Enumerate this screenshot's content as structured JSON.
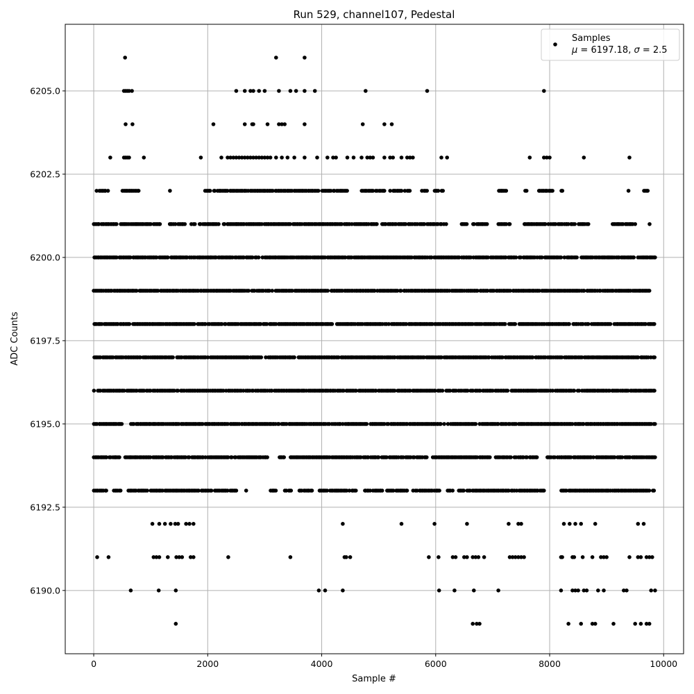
{
  "chart_data": {
    "type": "scatter",
    "title": "Run 529, channel107, Pedestal",
    "xlabel": "Sample #",
    "ylabel": "ADC Counts",
    "xlim": [
      -500,
      10350
    ],
    "ylim": [
      6188.1,
      6207.0
    ],
    "xticks": [
      0,
      2000,
      4000,
      6000,
      8000,
      10000
    ],
    "xtick_labels": [
      "0",
      "2000",
      "4000",
      "6000",
      "8000",
      "10000"
    ],
    "yticks": [
      6190.0,
      6192.5,
      6195.0,
      6197.5,
      6200.0,
      6202.5,
      6205.0
    ],
    "ytick_labels": [
      "6190.0",
      "6192.5",
      "6195.0",
      "6197.5",
      "6200.0",
      "6202.5",
      "6205.0"
    ],
    "grid": true,
    "legend": {
      "placement": "top-right",
      "series_label": "Samples",
      "stats_mu_symbol": "μ",
      "stats_mu_value": " = 6197.18, ",
      "stats_sigma_symbol": "σ",
      "stats_sigma_value": " = 2.5"
    },
    "colors": {
      "points": "#000000",
      "grid": "#b0b0b0",
      "axes": "#000000",
      "legend_border": "#cccccc"
    },
    "series": [
      {
        "name": "Samples",
        "sample_count": 9850,
        "x_range": [
          0,
          9850
        ],
        "distribution": [
          {
            "y": 6206,
            "x": [
              550,
              3200,
              3700
            ]
          },
          {
            "y": 6205,
            "x": [
              530,
              560,
              590,
              620,
              670,
              2500,
              2650,
              2750,
              2800,
              2900,
              3000,
              3250,
              3450,
              3550,
              3700,
              3880,
              4770,
              5850,
              7900
            ]
          },
          {
            "y": 6204,
            "x": [
              560,
              680,
              2100,
              2650,
              2780,
              2800,
              3050,
              3250,
              3300,
              3350,
              3700,
              4720,
              5100,
              5230
            ]
          },
          {
            "y": 6203,
            "x": [
              290,
              530,
              560,
              590,
              620,
              880,
              1880,
              2240,
              2350,
              2400,
              2450,
              2500,
              2550,
              2600,
              2650,
              2700,
              2750,
              2800,
              2850,
              2900,
              2950,
              3000,
              3050,
              3100,
              3200,
              3300,
              3400,
              3520,
              3700,
              3920,
              4100,
              4200,
              4250,
              4450,
              4560,
              4700,
              4800,
              4850,
              4900,
              5100,
              5200,
              5250,
              5400,
              5500,
              5550,
              5600,
              6100,
              6200,
              7650,
              7900,
              7950,
              8000,
              8600,
              9400
            ]
          },
          {
            "y": 6192,
            "x": [
              1030,
              1150,
              1250,
              1350,
              1430,
              1480,
              1620,
              1680,
              1750,
              4370,
              5400,
              5980,
              6550,
              7280,
              7450,
              7500,
              8250,
              8350,
              8450,
              8550,
              8800,
              9550,
              9650
            ]
          },
          {
            "y": 6191,
            "x": [
              60,
              260,
              1050,
              1100,
              1150,
              1300,
              1450,
              1500,
              1550,
              1700,
              1750,
              2360,
              3450,
              4400,
              4430,
              4500,
              5880,
              6050,
              6300,
              6350,
              6500,
              6550,
              6650,
              6700,
              6750,
              6850,
              7300,
              7350,
              7400,
              7450,
              7500,
              7550,
              8200,
              8220,
              8400,
              8430,
              8580,
              8750,
              8900,
              8950,
              9000,
              9400,
              9550,
              9600,
              9700,
              9750,
              9800
            ]
          },
          {
            "y": 6190,
            "x": [
              650,
              1140,
              1440,
              3950,
              4060,
              4370,
              6060,
              6330,
              6670,
              7100,
              8200,
              8400,
              8450,
              8500,
              8600,
              8650,
              8850,
              8950,
              9300,
              9350,
              9780,
              9850
            ]
          },
          {
            "y": 6189,
            "x": [
              1440,
              6650,
              6720,
              6770,
              8330,
              8550,
              8750,
              8800,
              9120,
              9500,
              9600,
              9700,
              9750
            ]
          }
        ],
        "dense_levels": [
          {
            "y": 6202,
            "segments": [
              [
                50,
                260
              ],
              [
                500,
                800
              ],
              [
                1330,
                1360
              ],
              [
                1950,
                2050
              ],
              [
                2100,
                2700
              ],
              [
                2700,
                3600
              ],
              [
                3600,
                3950
              ],
              [
                4000,
                4450
              ],
              [
                4700,
                5100
              ],
              [
                5200,
                5400
              ],
              [
                5450,
                5550
              ],
              [
                5750,
                5850
              ],
              [
                5950,
                6050
              ],
              [
                6100,
                6150
              ],
              [
                7100,
                7250
              ],
              [
                7550,
                7600
              ],
              [
                7800,
                8050
              ],
              [
                8200,
                8230
              ],
              [
                9380,
                9400
              ],
              [
                9650,
                9730
              ]
            ]
          },
          {
            "y": 6201,
            "segments": [
              [
                0,
                400
              ],
              [
                450,
                1000
              ],
              [
                1050,
                1200
              ],
              [
                1300,
                1600
              ],
              [
                1700,
                1800
              ],
              [
                1850,
                2200
              ],
              [
                2250,
                2500
              ],
              [
                2500,
                5800
              ],
              [
                5850,
                6200
              ],
              [
                6400,
                6550
              ],
              [
                6650,
                6900
              ],
              [
                7100,
                7300
              ],
              [
                7550,
                8450
              ],
              [
                8500,
                8700
              ],
              [
                9100,
                9500
              ],
              [
                9750,
                9760
              ]
            ]
          },
          {
            "y": 6200,
            "segments": [
              [
                0,
                1300
              ],
              [
                1350,
                8200
              ],
              [
                8250,
                8500
              ],
              [
                8550,
                9850
              ]
            ]
          },
          {
            "y": 6199,
            "segments": [
              [
                0,
                9750
              ]
            ]
          },
          {
            "y": 6198,
            "segments": [
              [
                0,
                9850
              ]
            ]
          },
          {
            "y": 6197,
            "segments": [
              [
                0,
                9850
              ]
            ]
          },
          {
            "y": 6196,
            "segments": [
              [
                0,
                9850
              ]
            ]
          },
          {
            "y": 6195,
            "segments": [
              [
                0,
                500
              ],
              [
                650,
                9850
              ]
            ]
          },
          {
            "y": 6194,
            "segments": [
              [
                0,
                450
              ],
              [
                550,
                3050
              ],
              [
                3250,
                3350
              ],
              [
                3450,
                5000
              ],
              [
                5050,
                5850
              ],
              [
                5950,
                6950
              ],
              [
                7050,
                7800
              ],
              [
                7950,
                9850
              ]
            ]
          },
          {
            "y": 6193,
            "segments": [
              [
                0,
                220
              ],
              [
                350,
                470
              ],
              [
                600,
                950
              ],
              [
                1000,
                2500
              ],
              [
                2650,
                2700
              ],
              [
                3100,
                3200
              ],
              [
                3350,
                3500
              ],
              [
                3600,
                3850
              ],
              [
                3950,
                4600
              ],
              [
                4750,
                4850
              ],
              [
                4900,
                5500
              ],
              [
                5600,
                6100
              ],
              [
                6200,
                6300
              ],
              [
                6400,
                7900
              ],
              [
                8200,
                9850
              ]
            ]
          }
        ]
      }
    ]
  }
}
